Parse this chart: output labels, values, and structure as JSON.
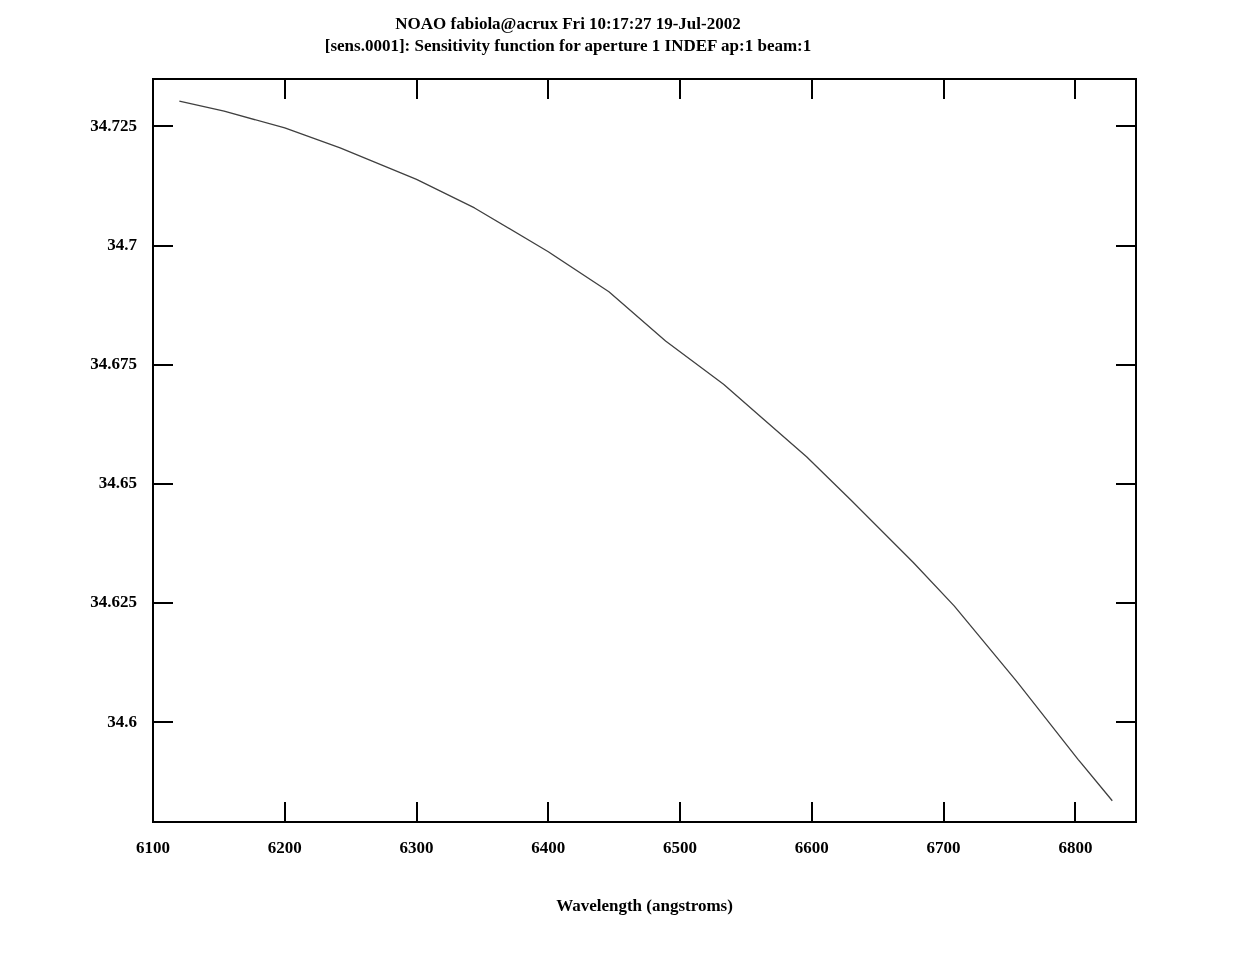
{
  "chart_data": {
    "type": "line",
    "title": "NOAO fabiola@acrux Fri 10:17:27 19-Jul-2002",
    "subtitle": "[sens.0001]: Sensitivity function for aperture 1 INDEF ap:1 beam:1",
    "xlabel": "Wavelength (angstroms)",
    "x": [
      6120,
      6154,
      6200,
      6242,
      6300,
      6344,
      6400,
      6446,
      6489,
      6533,
      6596,
      6630,
      6677,
      6708,
      6755,
      6802,
      6828
    ],
    "series": [
      {
        "color": "#404040",
        "values": [
          34.7303,
          34.7282,
          34.7247,
          34.7205,
          34.7139,
          34.7079,
          34.6987,
          34.6903,
          34.68,
          34.6709,
          34.6557,
          34.6465,
          34.6335,
          34.6244,
          34.6087,
          34.5922,
          34.5835
        ]
      }
    ],
    "xlim": [
      6100,
      6846
    ],
    "xticks": [
      6100,
      6200,
      6300,
      6400,
      6500,
      6600,
      6700,
      6800
    ],
    "ylim": [
      34.579,
      34.735
    ],
    "yticks": [
      34.6,
      34.625,
      34.65,
      34.675,
      34.7,
      34.725
    ],
    "grid": false,
    "legend": false
  }
}
